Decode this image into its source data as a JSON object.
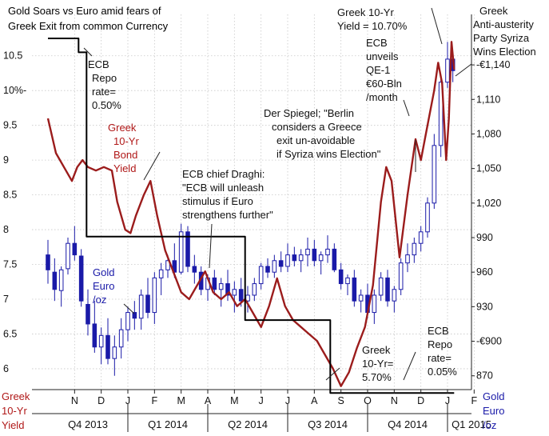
{
  "chart_data": {
    "type": "line",
    "title": "Gold Soars vs Euro amid fears of Greek Exit from common Currency",
    "title_lines": [
      "Gold Soars vs Euro amid fears of",
      "Greek Exit from common Currency"
    ],
    "grid": true,
    "left_axis": {
      "label_lines": [
        "Greek",
        "10-Yr",
        "Yield"
      ],
      "ticks": [
        {
          "v": 6,
          "label": "6"
        },
        {
          "v": 6.5,
          "label": "6.5"
        },
        {
          "v": 7,
          "label": "7"
        },
        {
          "v": 7.5,
          "label": "7.5"
        },
        {
          "v": 8,
          "label": "8"
        },
        {
          "v": 8.5,
          "label": "8.5"
        },
        {
          "v": 9,
          "label": "9"
        },
        {
          "v": 9.5,
          "label": "9.5"
        },
        {
          "v": 10,
          "label": "10%-"
        },
        {
          "v": 10.5,
          "label": "10.5"
        }
      ],
      "range": [
        5.7,
        10.75
      ]
    },
    "right_axis": {
      "label_lines": [
        "Gold",
        "Euro",
        "/oz"
      ],
      "ticks": [
        {
          "v": 870,
          "label": "870"
        },
        {
          "v": 900,
          "label": "-€900"
        },
        {
          "v": 930,
          "label": "930"
        },
        {
          "v": 960,
          "label": "960"
        },
        {
          "v": 990,
          "label": "990"
        },
        {
          "v": 1020,
          "label": "1,020"
        },
        {
          "v": 1050,
          "label": "1,050"
        },
        {
          "v": 1080,
          "label": "1,080"
        },
        {
          "v": 1110,
          "label": "1,110"
        },
        {
          "v": 1140,
          "label": "-€1,140"
        }
      ],
      "range": [
        858,
        1163
      ]
    },
    "x_axis": {
      "month_ticks": [
        {
          "t": 1,
          "label": "N"
        },
        {
          "t": 2,
          "label": "D"
        },
        {
          "t": 3,
          "label": "J"
        },
        {
          "t": 4,
          "label": "F"
        },
        {
          "t": 5,
          "label": "M"
        },
        {
          "t": 6,
          "label": "A"
        },
        {
          "t": 7,
          "label": "M"
        },
        {
          "t": 8,
          "label": "J"
        },
        {
          "t": 9,
          "label": "J"
        },
        {
          "t": 10,
          "label": "A"
        },
        {
          "t": 11,
          "label": "S"
        },
        {
          "t": 12,
          "label": "O"
        },
        {
          "t": 13,
          "label": "N"
        },
        {
          "t": 14,
          "label": "D"
        },
        {
          "t": 15,
          "label": "J"
        },
        {
          "t": 16,
          "label": "F"
        }
      ],
      "quarters": [
        {
          "label": "Q4 2013",
          "t": 1.5
        },
        {
          "label": "Q1 2014",
          "t": 4.5
        },
        {
          "label": "Q2 2014",
          "t": 7.5
        },
        {
          "label": "Q3 2014",
          "t": 10.5
        },
        {
          "label": "Q4 2014",
          "t": 13.5
        },
        {
          "label": "Q1 2015",
          "t": 15.9
        }
      ],
      "quarter_dividers": [
        3,
        6,
        9,
        12,
        15
      ]
    },
    "series": [
      {
        "name": "Greek 10-Yr Bond Yield",
        "axis": "left",
        "color": "#9b1c1c",
        "points": [
          [
            0.0,
            9.6
          ],
          [
            0.3,
            9.1
          ],
          [
            0.6,
            8.9
          ],
          [
            0.9,
            8.7
          ],
          [
            1.1,
            8.9
          ],
          [
            1.3,
            9.0
          ],
          [
            1.5,
            8.9
          ],
          [
            1.8,
            8.85
          ],
          [
            2.1,
            8.9
          ],
          [
            2.4,
            8.85
          ],
          [
            2.6,
            8.4
          ],
          [
            2.9,
            8.0
          ],
          [
            3.1,
            7.95
          ],
          [
            3.3,
            8.2
          ],
          [
            3.6,
            8.5
          ],
          [
            3.85,
            8.7
          ],
          [
            4.1,
            8.2
          ],
          [
            4.4,
            7.7
          ],
          [
            4.7,
            7.4
          ],
          [
            5.0,
            7.1
          ],
          [
            5.3,
            7.0
          ],
          [
            5.6,
            7.2
          ],
          [
            5.9,
            7.4
          ],
          [
            6.2,
            7.1
          ],
          [
            6.5,
            7.0
          ],
          [
            6.8,
            7.1
          ],
          [
            7.1,
            6.9
          ],
          [
            7.4,
            7.0
          ],
          [
            7.7,
            6.8
          ],
          [
            8.0,
            6.6
          ],
          [
            8.3,
            6.9
          ],
          [
            8.6,
            7.3
          ],
          [
            8.9,
            6.9
          ],
          [
            9.2,
            6.7
          ],
          [
            9.5,
            6.6
          ],
          [
            9.8,
            6.5
          ],
          [
            10.1,
            6.4
          ],
          [
            10.4,
            6.2
          ],
          [
            10.7,
            6.0
          ],
          [
            11.0,
            5.75
          ],
          [
            11.3,
            5.95
          ],
          [
            11.6,
            6.3
          ],
          [
            11.9,
            6.6
          ],
          [
            12.2,
            7.2
          ],
          [
            12.5,
            8.4
          ],
          [
            12.7,
            8.9
          ],
          [
            12.9,
            8.7
          ],
          [
            13.2,
            7.6
          ],
          [
            13.5,
            8.5
          ],
          [
            13.8,
            9.3
          ],
          [
            14.0,
            9.0
          ],
          [
            14.2,
            9.4
          ],
          [
            14.5,
            10.0
          ],
          [
            14.65,
            10.4
          ],
          [
            14.8,
            10.1
          ],
          [
            14.95,
            9.0
          ],
          [
            15.05,
            9.6
          ],
          [
            15.15,
            10.7
          ],
          [
            15.25,
            10.3
          ]
        ]
      },
      {
        "name": "ECB Repo rate",
        "axis": "left",
        "color": "#000000",
        "step": true,
        "points": [
          [
            0.0,
            10.75
          ],
          [
            1.15,
            10.75
          ],
          [
            1.15,
            10.55
          ],
          [
            1.45,
            10.55
          ],
          [
            1.45,
            7.9
          ],
          [
            7.4,
            7.9
          ],
          [
            7.4,
            6.7
          ],
          [
            10.6,
            6.7
          ],
          [
            10.6,
            5.65
          ],
          [
            15.25,
            5.65
          ]
        ]
      },
      {
        "name": "Gold Euro/oz",
        "axis": "right",
        "color": "#1a1aa8",
        "candles": [
          [
            0.0,
            975,
            988,
            950,
            962
          ],
          [
            0.25,
            960,
            972,
            935,
            945
          ],
          [
            0.5,
            944,
            965,
            930,
            962
          ],
          [
            0.75,
            963,
            990,
            958,
            985
          ],
          [
            1.0,
            985,
            1000,
            970,
            975
          ],
          [
            1.25,
            974,
            980,
            930,
            935
          ],
          [
            1.5,
            932,
            945,
            905,
            915
          ],
          [
            1.75,
            915,
            935,
            890,
            895
          ],
          [
            2.0,
            895,
            912,
            880,
            905
          ],
          [
            2.25,
            905,
            920,
            880,
            885
          ],
          [
            2.5,
            885,
            905,
            870,
            895
          ],
          [
            2.75,
            895,
            920,
            885,
            910
          ],
          [
            3.0,
            910,
            930,
            900,
            925
          ],
          [
            3.25,
            925,
            935,
            910,
            920
          ],
          [
            3.5,
            920,
            945,
            910,
            940
          ],
          [
            3.75,
            940,
            955,
            920,
            925
          ],
          [
            4.0,
            925,
            960,
            915,
            955
          ],
          [
            4.25,
            955,
            968,
            940,
            962
          ],
          [
            4.5,
            962,
            975,
            955,
            970
          ],
          [
            4.75,
            970,
            985,
            955,
            960
          ],
          [
            5.0,
            960,
            1002,
            958,
            995
          ],
          [
            5.25,
            995,
            1000,
            960,
            965
          ],
          [
            5.5,
            965,
            975,
            950,
            960
          ],
          [
            5.75,
            960,
            965,
            940,
            945
          ],
          [
            6.0,
            945,
            958,
            935,
            955
          ],
          [
            6.25,
            955,
            962,
            940,
            945
          ],
          [
            6.5,
            945,
            955,
            930,
            950
          ],
          [
            6.75,
            950,
            962,
            935,
            940
          ],
          [
            7.0,
            940,
            952,
            925,
            945
          ],
          [
            7.25,
            945,
            955,
            930,
            935
          ],
          [
            7.5,
            935,
            948,
            925,
            940
          ],
          [
            7.75,
            940,
            955,
            935,
            950
          ],
          [
            8.0,
            950,
            968,
            945,
            965
          ],
          [
            8.25,
            965,
            972,
            955,
            960
          ],
          [
            8.5,
            960,
            975,
            955,
            970
          ],
          [
            8.75,
            970,
            978,
            960,
            965
          ],
          [
            9.0,
            965,
            985,
            960,
            975
          ],
          [
            9.25,
            975,
            982,
            965,
            970
          ],
          [
            9.5,
            970,
            980,
            960,
            975
          ],
          [
            9.75,
            975,
            990,
            965,
            980
          ],
          [
            10.0,
            980,
            988,
            965,
            970
          ],
          [
            10.25,
            970,
            978,
            958,
            975
          ],
          [
            10.5,
            975,
            992,
            968,
            980
          ],
          [
            10.75,
            980,
            985,
            960,
            962
          ],
          [
            11.0,
            962,
            968,
            945,
            950
          ],
          [
            11.25,
            950,
            958,
            940,
            955
          ],
          [
            11.5,
            955,
            962,
            930,
            935
          ],
          [
            11.75,
            935,
            945,
            925,
            940
          ],
          [
            12.0,
            940,
            950,
            920,
            925
          ],
          [
            12.25,
            925,
            945,
            915,
            940
          ],
          [
            12.5,
            940,
            960,
            935,
            955
          ],
          [
            12.75,
            955,
            962,
            930,
            935
          ],
          [
            13.0,
            935,
            948,
            925,
            945
          ],
          [
            13.25,
            945,
            972,
            940,
            968
          ],
          [
            13.5,
            968,
            985,
            960,
            975
          ],
          [
            13.75,
            975,
            990,
            968,
            985
          ],
          [
            14.0,
            985,
            1000,
            978,
            995
          ],
          [
            14.25,
            995,
            1025,
            990,
            1020
          ],
          [
            14.5,
            1020,
            1080,
            1015,
            1070
          ],
          [
            14.75,
            1070,
            1130,
            1060,
            1125
          ],
          [
            15.0,
            1125,
            1160,
            1120,
            1145
          ],
          [
            15.2,
            1145,
            1150,
            1125,
            1135
          ]
        ]
      }
    ],
    "annotations": [
      {
        "id": "ecb-repo-050",
        "lines": [
          "ECB",
          "Repo",
          "rate=",
          "0.50%"
        ]
      },
      {
        "id": "greek-bond-yield",
        "lines": [
          "Greek",
          "10-Yr",
          "Bond",
          "Yield"
        ]
      },
      {
        "id": "gold-euro-oz",
        "lines": [
          "Gold",
          "Euro",
          "/oz"
        ]
      },
      {
        "id": "draghi",
        "lines": [
          "ECB chief Draghi:",
          "\"ECB will unleash",
          "stimulus if Euro",
          "strengthens further\""
        ]
      },
      {
        "id": "spiegel",
        "lines": [
          "Der Spiegel; \"Berlin",
          "considers  a Greece",
          "exit un-avoidable",
          "if Syriza wins Election\""
        ]
      },
      {
        "id": "greek-1070",
        "lines": [
          "Greek 10-Yr",
          "Yield = 10.70%"
        ]
      },
      {
        "id": "ecb-qe",
        "lines": [
          "ECB",
          "unveils",
          "QE-1",
          "€60-Bln",
          "/month"
        ]
      },
      {
        "id": "syriza",
        "lines": [
          "Greek",
          "Anti-austerity",
          "Party Syriza",
          "Wins Election"
        ]
      },
      {
        "id": "greek-570",
        "lines": [
          "Greek",
          "10-Yr=",
          "5.70%"
        ]
      },
      {
        "id": "ecb-repo-005",
        "lines": [
          "ECB",
          "Repo",
          "rate=",
          "0.05%"
        ]
      }
    ]
  }
}
